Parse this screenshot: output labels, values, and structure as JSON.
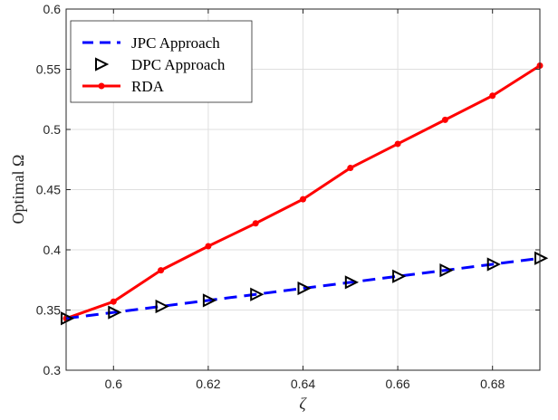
{
  "chart_data": {
    "type": "line",
    "xlabel": "ζ",
    "ylabel": "Optimal Ω",
    "xlim": [
      0.59,
      0.69
    ],
    "ylim": [
      0.3,
      0.6
    ],
    "x_ticks": [
      0.6,
      0.62,
      0.64,
      0.66,
      0.68
    ],
    "x_tick_labels": [
      "0.6",
      "0.62",
      "0.64",
      "0.66",
      "0.68"
    ],
    "y_ticks": [
      0.3,
      0.35,
      0.4,
      0.45,
      0.5,
      0.55,
      0.6
    ],
    "y_tick_labels": [
      "0.3",
      "0.35",
      "0.4",
      "0.45",
      "0.5",
      "0.55",
      "0.6"
    ],
    "grid": true,
    "legend_position": "top-left",
    "series": [
      {
        "name": "JPC Approach",
        "color": "#0000ff",
        "line_style": "dashed",
        "marker": "none",
        "x": [
          0.59,
          0.6,
          0.61,
          0.62,
          0.63,
          0.64,
          0.65,
          0.66,
          0.67,
          0.68,
          0.69
        ],
        "y": [
          0.343,
          0.348,
          0.353,
          0.358,
          0.363,
          0.368,
          0.373,
          0.378,
          0.383,
          0.388,
          0.393
        ]
      },
      {
        "name": "DPC Approach",
        "color": "#000000",
        "line_style": "none",
        "marker": "triangle-right",
        "x": [
          0.59,
          0.6,
          0.61,
          0.62,
          0.63,
          0.64,
          0.65,
          0.66,
          0.67,
          0.68,
          0.69
        ],
        "y": [
          0.343,
          0.348,
          0.353,
          0.358,
          0.363,
          0.368,
          0.373,
          0.378,
          0.383,
          0.388,
          0.393
        ]
      },
      {
        "name": "RDA",
        "color": "#ff0000",
        "line_style": "solid",
        "marker": "circle",
        "x": [
          0.59,
          0.6,
          0.61,
          0.62,
          0.63,
          0.64,
          0.65,
          0.66,
          0.67,
          0.68,
          0.69
        ],
        "y": [
          0.343,
          0.357,
          0.383,
          0.403,
          0.422,
          0.442,
          0.468,
          0.488,
          0.508,
          0.528,
          0.553
        ]
      }
    ]
  }
}
